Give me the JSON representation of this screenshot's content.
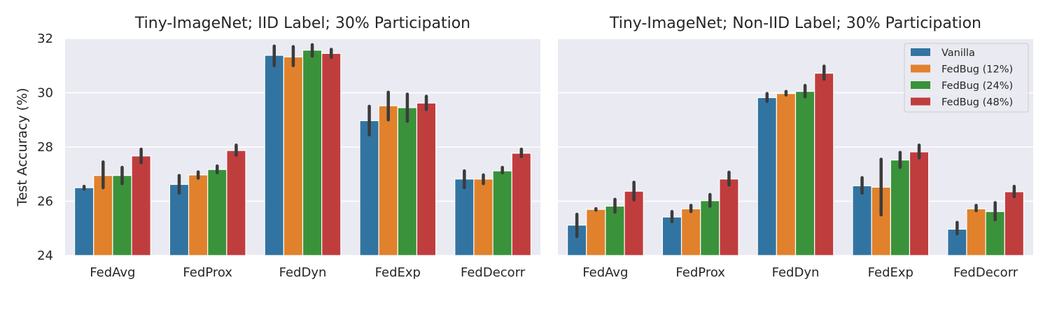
{
  "chart_data": [
    {
      "type": "bar",
      "title": "Tiny-ImageNet; IID Label; 30% Participation",
      "ylabel": "Test Accuracy (%)",
      "xlabel": "",
      "ylim": [
        24,
        32
      ],
      "yticks": [
        24,
        26,
        28,
        30,
        32
      ],
      "grid": true,
      "legend": false,
      "categories": [
        "FedAvg",
        "FedProx",
        "FedDyn",
        "FedExp",
        "FedDecorr"
      ],
      "series": [
        {
          "name": "Vanilla",
          "values": [
            26.5,
            26.62,
            31.38,
            28.97,
            26.82
          ],
          "err_low": [
            26.45,
            26.3,
            31.0,
            28.45,
            26.5
          ],
          "err_high": [
            26.55,
            26.95,
            31.72,
            29.5,
            27.12
          ]
        },
        {
          "name": "FedBug (12%)",
          "values": [
            26.95,
            26.97,
            31.32,
            29.52,
            26.82
          ],
          "err_low": [
            26.5,
            26.85,
            31.0,
            29.0,
            26.65
          ],
          "err_high": [
            27.45,
            27.08,
            31.7,
            30.02,
            26.97
          ]
        },
        {
          "name": "FedBug (24%)",
          "values": [
            26.95,
            27.17,
            31.57,
            29.45,
            27.12
          ],
          "err_low": [
            26.65,
            27.05,
            31.35,
            28.95,
            27.05
          ],
          "err_high": [
            27.25,
            27.3,
            31.77,
            29.95,
            27.25
          ]
        },
        {
          "name": "FedBug (48%)",
          "values": [
            27.67,
            27.87,
            31.45,
            29.62,
            27.77
          ],
          "err_low": [
            27.42,
            27.7,
            31.3,
            29.38,
            27.65
          ],
          "err_high": [
            27.92,
            28.07,
            31.6,
            29.87,
            27.92
          ]
        }
      ]
    },
    {
      "type": "bar",
      "title": "Tiny-ImageNet; Non-IID Label; 30% Participation",
      "ylabel": "",
      "xlabel": "",
      "ylim": [
        24,
        32
      ],
      "yticks": [
        24,
        26,
        28,
        30,
        32
      ],
      "grid": true,
      "legend": true,
      "legend_position": "top-right",
      "categories": [
        "FedAvg",
        "FedProx",
        "FedDyn",
        "FedExp",
        "FedDecorr"
      ],
      "series": [
        {
          "name": "Vanilla",
          "values": [
            25.12,
            25.42,
            29.82,
            26.57,
            24.97
          ],
          "err_low": [
            24.7,
            25.25,
            29.68,
            26.3,
            24.8
          ],
          "err_high": [
            25.52,
            25.62,
            29.97,
            26.87,
            25.22
          ]
        },
        {
          "name": "FedBug (12%)",
          "values": [
            25.7,
            25.72,
            29.97,
            26.52,
            25.72
          ],
          "err_low": [
            25.7,
            25.62,
            29.92,
            25.5,
            25.65
          ],
          "err_high": [
            25.7,
            25.85,
            30.05,
            27.55,
            25.85
          ]
        },
        {
          "name": "FedBug (24%)",
          "values": [
            25.82,
            26.02,
            30.05,
            27.52,
            25.62
          ],
          "err_low": [
            25.6,
            25.82,
            29.85,
            27.25,
            25.32
          ],
          "err_high": [
            26.07,
            26.25,
            30.27,
            27.8,
            25.95
          ]
        },
        {
          "name": "FedBug (48%)",
          "values": [
            26.37,
            26.82,
            30.72,
            27.82,
            26.35
          ],
          "err_low": [
            26.05,
            26.6,
            30.5,
            27.6,
            26.17
          ],
          "err_high": [
            26.7,
            27.07,
            30.98,
            28.07,
            26.55
          ]
        }
      ]
    }
  ],
  "colors": {
    "series": [
      "#3274a1",
      "#e1812c",
      "#3a923a",
      "#c03d3e"
    ],
    "plot_background": "#eaeaf2",
    "grid": "#ffffff",
    "errorbar": "#3b3b3b",
    "text": "#262626"
  }
}
